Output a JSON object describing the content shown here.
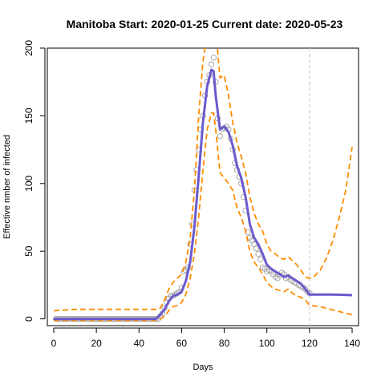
{
  "chart_data": {
    "type": "line",
    "title": "Manitoba Start:  2020-01-25   Current date:  2020-05-23",
    "xlabel": "Days",
    "ylabel": "Effective nmber of infected",
    "xlim": [
      -3,
      143
    ],
    "ylim": [
      -5,
      200
    ],
    "x_ticks": [
      0,
      20,
      40,
      60,
      80,
      100,
      120,
      140
    ],
    "y_ticks": [
      0,
      50,
      100,
      150,
      200
    ],
    "current_day_marker": 120,
    "colors": {
      "fit": "#6a5acd",
      "band": "#ff8c00",
      "observed": "#a0a0a0",
      "marker": "#cccccc"
    },
    "series": [
      {
        "role": "observed",
        "x": [
          1,
          2,
          3,
          4,
          5,
          6,
          7,
          8,
          9,
          10,
          11,
          12,
          13,
          14,
          15,
          16,
          17,
          18,
          19,
          20,
          21,
          22,
          23,
          24,
          25,
          26,
          27,
          28,
          29,
          30,
          31,
          32,
          33,
          34,
          35,
          36,
          37,
          38,
          39,
          40,
          41,
          42,
          43,
          44,
          45,
          46,
          47,
          48,
          49,
          50,
          51,
          52,
          53,
          54,
          55,
          56,
          57,
          58,
          59,
          60,
          61,
          62,
          63,
          64,
          65,
          66,
          67,
          68,
          69,
          70,
          71,
          72,
          73,
          74,
          75,
          76,
          77,
          78,
          79,
          80,
          81,
          82,
          83,
          84,
          85,
          86,
          87,
          88,
          89,
          90,
          91,
          92,
          93,
          94,
          95,
          96,
          97,
          98,
          99,
          100,
          101,
          102,
          103,
          104,
          105,
          106,
          107,
          108,
          109,
          110,
          111,
          112,
          113,
          114,
          115,
          116,
          117,
          118,
          119,
          120
        ],
        "y": [
          0,
          0,
          0,
          0,
          0,
          0,
          0,
          0,
          0,
          0,
          0,
          0,
          0,
          0,
          0,
          0,
          0,
          0,
          0,
          0,
          0,
          0,
          0,
          0,
          0,
          0,
          0,
          0,
          0,
          0,
          0,
          0,
          0,
          0,
          0,
          0,
          0,
          0,
          0,
          0,
          0,
          0,
          0,
          0,
          0,
          0,
          0,
          0,
          0,
          2,
          4,
          8,
          12,
          15,
          17,
          17,
          18,
          19,
          20,
          23,
          35,
          36,
          38,
          55,
          70,
          95,
          110,
          125,
          140,
          150,
          165,
          175,
          180,
          188,
          193,
          175,
          148,
          135,
          140,
          141,
          142,
          140,
          133,
          125,
          115,
          110,
          105,
          100,
          90,
          80,
          64,
          60,
          58,
          55,
          52,
          48,
          44,
          38,
          37,
          35,
          36,
          35,
          33,
          31,
          30,
          32,
          34,
          33,
          30,
          31,
          29,
          28,
          27,
          26,
          25,
          24,
          23,
          22,
          20,
          19
        ]
      },
      {
        "role": "fit",
        "x": [
          0,
          10,
          20,
          30,
          40,
          48,
          50,
          52,
          54,
          56,
          58,
          60,
          62,
          64,
          66,
          68,
          70,
          72,
          74,
          75,
          76,
          78,
          80,
          82,
          84,
          86,
          88,
          90,
          92,
          94,
          96,
          98,
          100,
          102,
          104,
          106,
          108,
          110,
          112,
          114,
          116,
          118,
          120,
          125,
          130,
          135,
          140
        ],
        "y": [
          0,
          0,
          0,
          0,
          0,
          0,
          3,
          7,
          13,
          17,
          18,
          20,
          28,
          42,
          68,
          105,
          145,
          172,
          184,
          183,
          165,
          140,
          142,
          138,
          128,
          113,
          104,
          90,
          70,
          60,
          55,
          48,
          40,
          37,
          35,
          33,
          31,
          32,
          30,
          28,
          26,
          22,
          18,
          18,
          18,
          17.8,
          17.5
        ]
      },
      {
        "role": "upper_band",
        "x": [
          0,
          10,
          20,
          30,
          40,
          48,
          50,
          52,
          54,
          56,
          58,
          60,
          62,
          64,
          66,
          68,
          70,
          72,
          74,
          76,
          78,
          80,
          82,
          84,
          86,
          88,
          90,
          92,
          94,
          96,
          98,
          100,
          102,
          104,
          106,
          108,
          110,
          112,
          114,
          116,
          118,
          120,
          122,
          125,
          128,
          131,
          134,
          137,
          140
        ],
        "y": [
          6,
          7,
          7,
          7,
          7,
          7,
          8,
          14,
          22,
          27,
          30,
          33,
          42,
          60,
          95,
          150,
          190,
          212,
          220,
          214,
          178,
          180,
          165,
          145,
          130,
          120,
          108,
          90,
          78,
          70,
          65,
          55,
          50,
          48,
          45,
          44,
          46,
          43,
          40,
          36,
          31,
          30,
          31,
          36,
          45,
          58,
          75,
          95,
          127
        ]
      },
      {
        "role": "lower_band",
        "x": [
          0,
          10,
          20,
          30,
          40,
          48,
          50,
          52,
          54,
          56,
          58,
          60,
          62,
          64,
          66,
          68,
          70,
          72,
          74,
          75,
          76,
          78,
          80,
          82,
          84,
          86,
          88,
          90,
          92,
          94,
          96,
          98,
          100,
          102,
          104,
          106,
          108,
          110,
          112,
          114,
          116,
          118,
          120,
          125,
          130,
          135,
          140
        ],
        "y": [
          -1,
          -1,
          -1,
          -1,
          -1,
          -1,
          0,
          2,
          6,
          9,
          10,
          12,
          18,
          30,
          48,
          75,
          110,
          140,
          152,
          152,
          140,
          108,
          104,
          100,
          95,
          82,
          75,
          65,
          50,
          42,
          38,
          33,
          27,
          24,
          22,
          21,
          20,
          22,
          19,
          17,
          16,
          14,
          10,
          9,
          7,
          5,
          3
        ]
      }
    ]
  }
}
